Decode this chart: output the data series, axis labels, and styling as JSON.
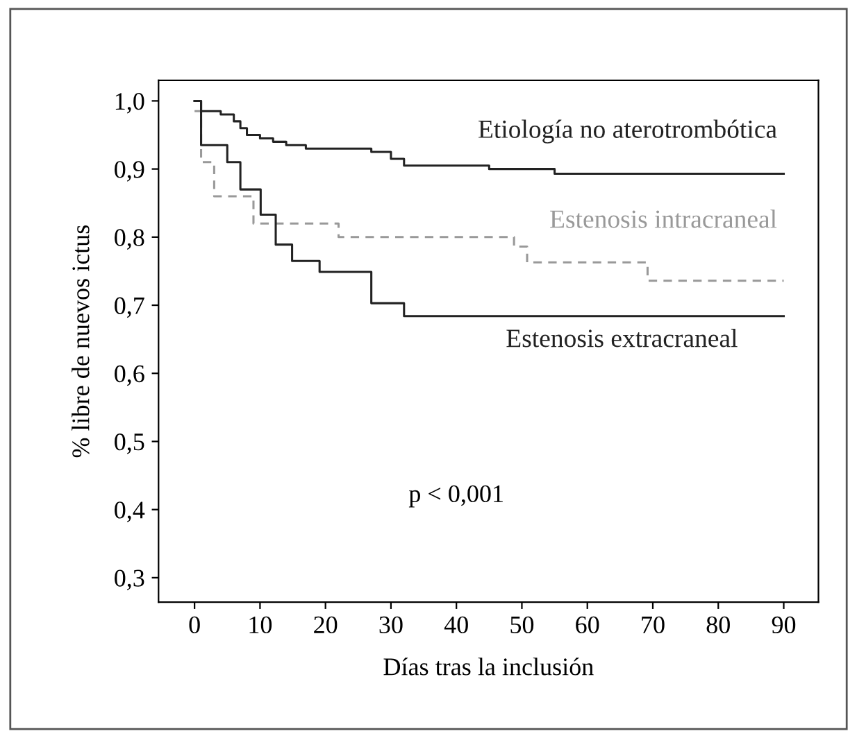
{
  "chart_data": {
    "type": "step",
    "xlabel": "Días tras la inclusión",
    "ylabel": "% libre de nuevos ictus",
    "xlim": [
      -5.5,
      95.3
    ],
    "xticks": [
      0,
      10,
      20,
      30,
      40,
      50,
      60,
      70,
      80,
      90
    ],
    "ylim": [
      0.264,
      1.03
    ],
    "yticks": [
      {
        "value": 0.3,
        "label": "0,3"
      },
      {
        "value": 0.4,
        "label": "0,4"
      },
      {
        "value": 0.5,
        "label": "0,5"
      },
      {
        "value": 0.6,
        "label": "0,6"
      },
      {
        "value": 0.7,
        "label": "0,7"
      },
      {
        "value": 0.8,
        "label": "0,8"
      },
      {
        "value": 0.9,
        "label": "0,9"
      },
      {
        "value": 1.0,
        "label": "1,0"
      }
    ],
    "grid": false,
    "legend": false,
    "series": [
      {
        "name": "Etiología no aterotrombótica",
        "color": "#222222",
        "line_style": "solid",
        "x": [
          0,
          1,
          4,
          6,
          7,
          8,
          10,
          12,
          14,
          17,
          27,
          30,
          32,
          45,
          55,
          90
        ],
        "values": [
          1.0,
          0.985,
          0.98,
          0.97,
          0.96,
          0.95,
          0.945,
          0.94,
          0.935,
          0.93,
          0.925,
          0.915,
          0.905,
          0.9,
          0.893,
          0.893
        ]
      },
      {
        "name": "Estenosis intracraneal",
        "color": "#999999",
        "line_style": "dashed",
        "x": [
          0,
          1,
          3,
          9,
          22,
          48.8,
          50.8,
          69.2,
          90
        ],
        "values": [
          0.985,
          0.91,
          0.86,
          0.82,
          0.8,
          0.786,
          0.763,
          0.736,
          0.736
        ]
      },
      {
        "name": "Estenosis extracraneal",
        "color": "#222222",
        "line_style": "solid",
        "x": [
          0,
          1,
          5,
          7,
          10.1,
          12.4,
          14.9,
          19.1,
          27,
          32,
          90
        ],
        "values": [
          1.0,
          0.935,
          0.91,
          0.87,
          0.833,
          0.789,
          0.765,
          0.749,
          0.703,
          0.684,
          0.684
        ]
      }
    ],
    "annotations": [
      "p < 0,001"
    ]
  }
}
